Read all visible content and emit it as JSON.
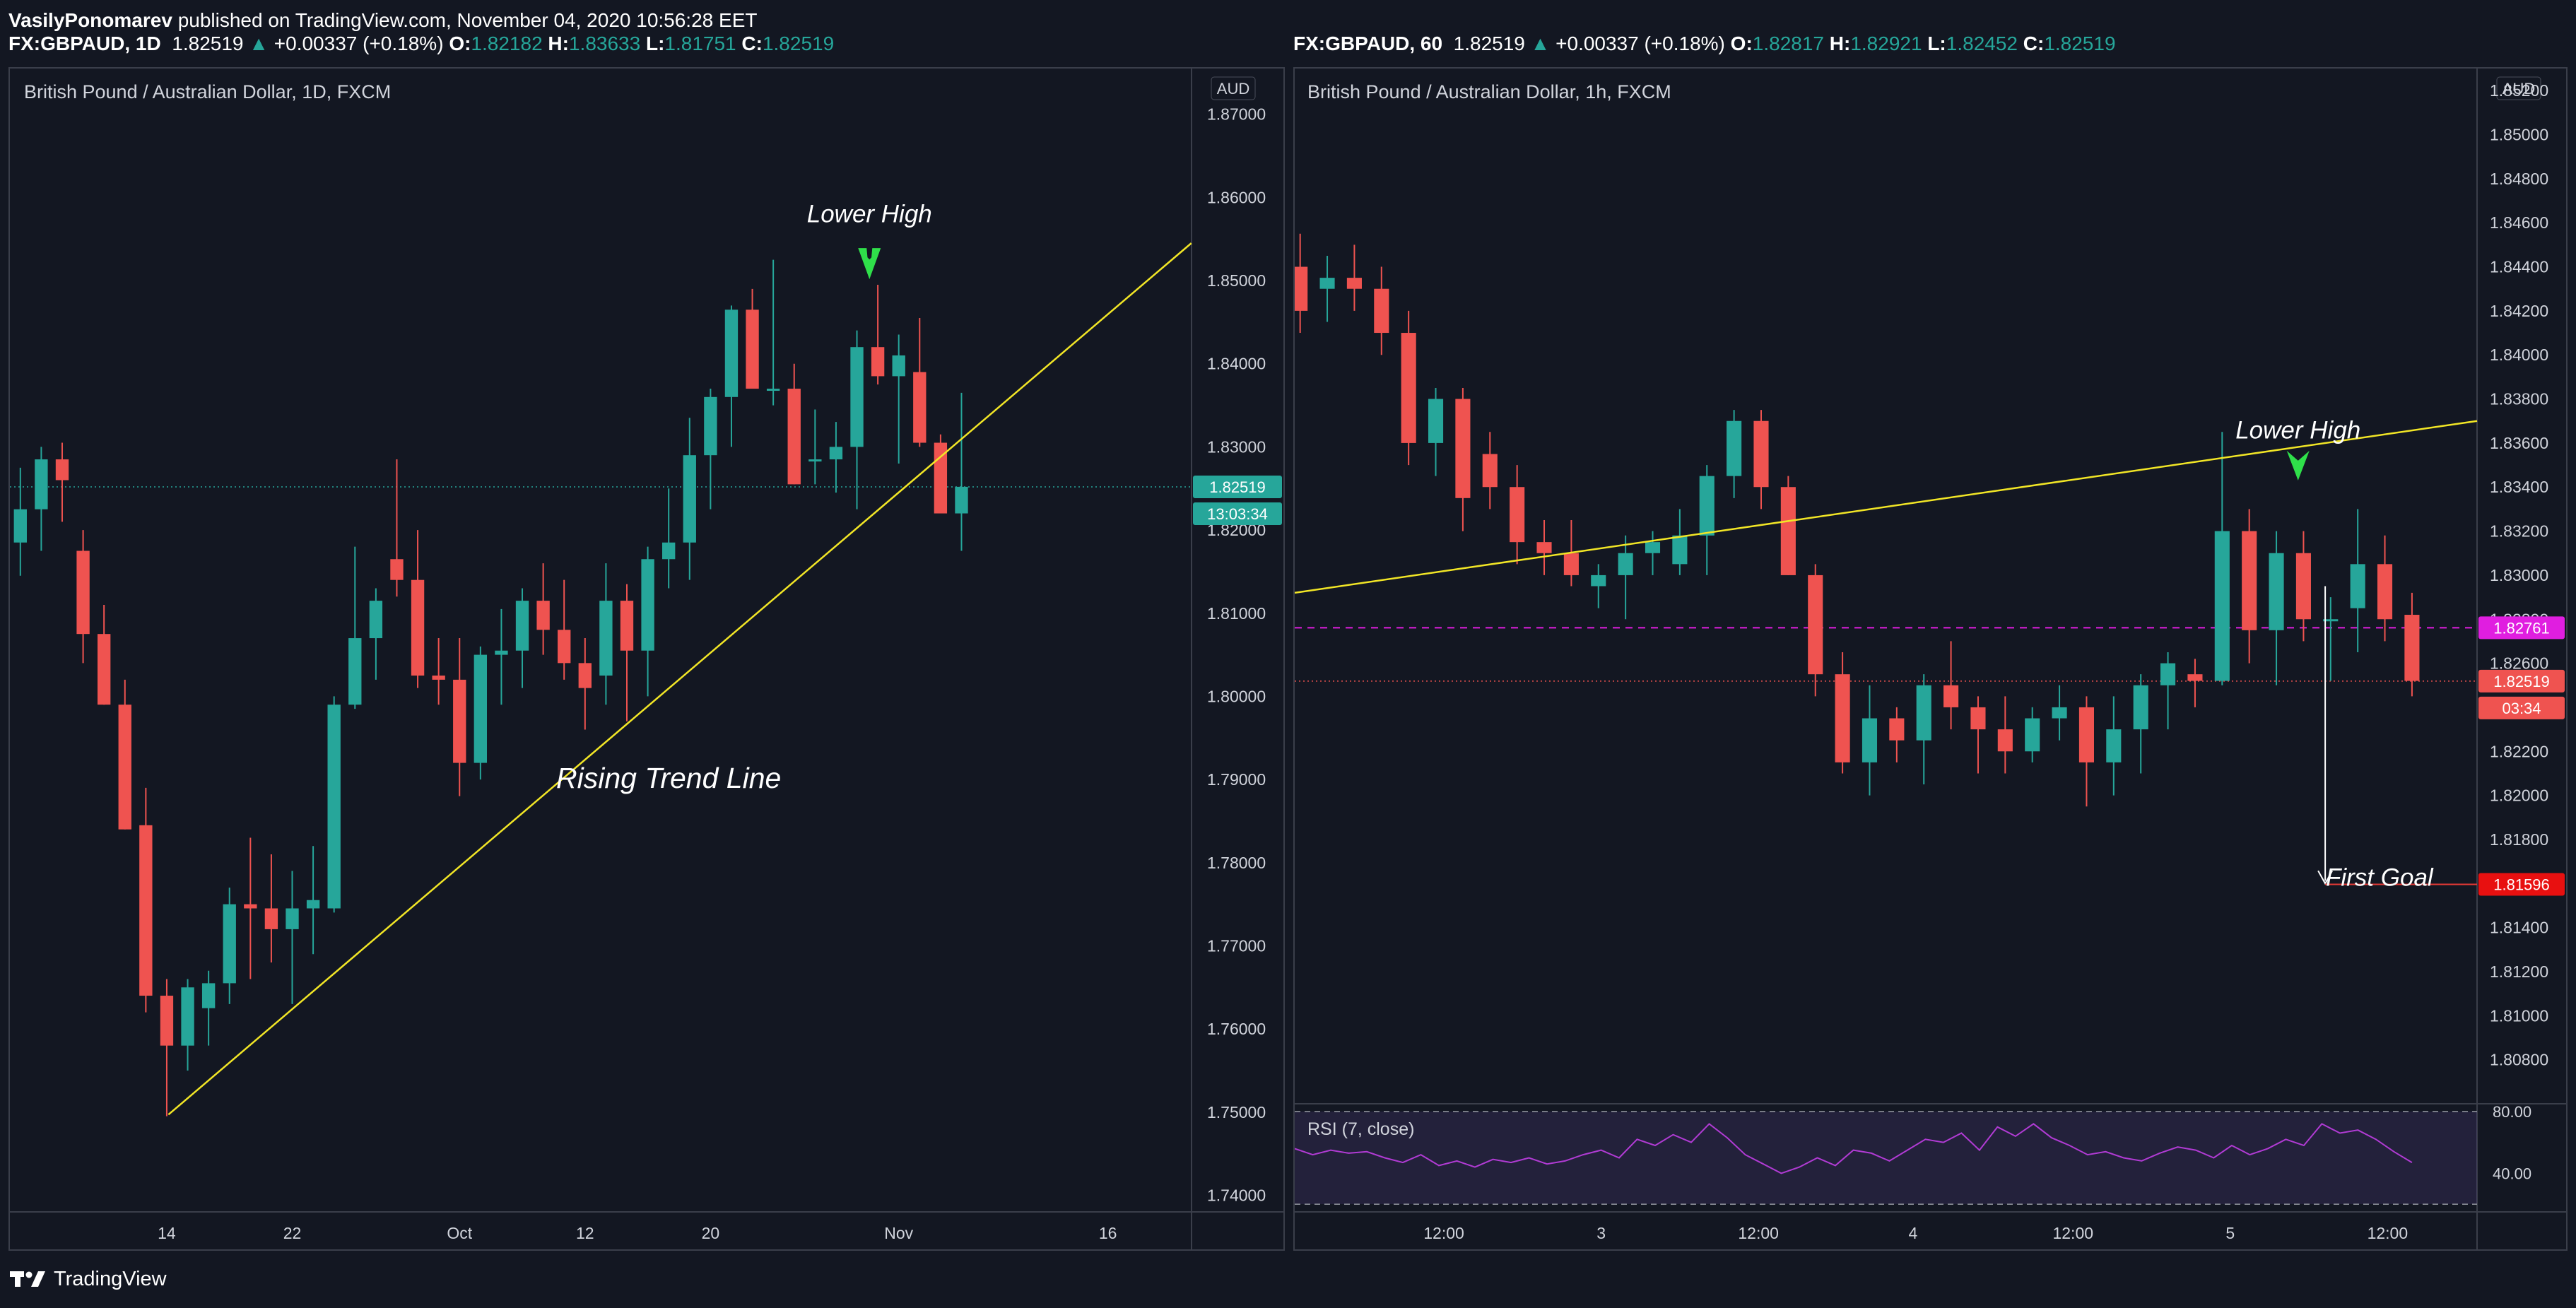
{
  "header": {
    "author": "VasilyPonomarev",
    "published_text": "published on TradingView.com, November 04, 2020 10:56:28 EET"
  },
  "left": {
    "symbol": "FX:GBPAUD, 1D",
    "price": "1.82519",
    "change": "+0.00337 (+0.18%)",
    "ohlc": {
      "O": "1.82182",
      "H": "1.83633",
      "L": "1.81751",
      "C": "1.82519"
    },
    "title": "British Pound / Australian Dollar, 1D, FXCM",
    "currency": "AUD",
    "price_tag": "1.82519",
    "countdown_tag": "13:03:34"
  },
  "right": {
    "symbol": "FX:GBPAUD, 60",
    "price": "1.82519",
    "change": "+0.00337 (+0.18%)",
    "ohlc": {
      "O": "1.82817",
      "H": "1.82921",
      "L": "1.82452",
      "C": "1.82519"
    },
    "title": "British Pound / Australian Dollar, 1h, FXCM",
    "currency": "AUD",
    "price_tag": "1.82519",
    "countdown_tag": "03:34",
    "magenta_tag": "1.82761",
    "goal_tag": "1.81596",
    "rsi_label": "RSI (7, close)"
  },
  "footer": {
    "brand": "TradingView"
  },
  "colors": {
    "up": "#26a69a",
    "down": "#ef5350",
    "trend": "#f2e626",
    "arrow": "#2fe04a",
    "background": "#131722",
    "magenta": "#e01ee0"
  },
  "chart_data": [
    {
      "type": "candlestick",
      "title": "British Pound / Australian Dollar, 1D, FXCM",
      "ylim": [
        1.738,
        1.8755
      ],
      "y_ticks": [
        1.87,
        1.86,
        1.85,
        1.84,
        1.83,
        1.82,
        1.81,
        1.8,
        1.79,
        1.78,
        1.77,
        1.76,
        1.75,
        1.74
      ],
      "x_ticks": [
        {
          "index": 7,
          "label": "14"
        },
        {
          "index": 13,
          "label": "22"
        },
        {
          "index": 21,
          "label": "Oct"
        },
        {
          "index": 27,
          "label": "12"
        },
        {
          "index": 33,
          "label": "20"
        },
        {
          "index": 42,
          "label": "Nov"
        },
        {
          "index": 52,
          "label": "16"
        }
      ],
      "x_range": [
        -0.5,
        56
      ],
      "last_price": 1.82519,
      "candles": [
        [
          1.8185,
          1.8275,
          1.8145,
          1.8225
        ],
        [
          1.8225,
          1.83,
          1.8175,
          1.8285
        ],
        [
          1.8285,
          1.8305,
          1.821,
          1.826
        ],
        [
          1.8175,
          1.82,
          1.804,
          1.8075
        ],
        [
          1.8075,
          1.811,
          1.799,
          1.799
        ],
        [
          1.799,
          1.802,
          1.784,
          1.784
        ],
        [
          1.7845,
          1.789,
          1.762,
          1.764
        ],
        [
          1.764,
          1.766,
          1.7495,
          1.758
        ],
        [
          1.758,
          1.766,
          1.755,
          1.765
        ],
        [
          1.7625,
          1.767,
          1.758,
          1.7655
        ],
        [
          1.7655,
          1.777,
          1.763,
          1.775
        ],
        [
          1.775,
          1.783,
          1.766,
          1.7745
        ],
        [
          1.7745,
          1.781,
          1.768,
          1.772
        ],
        [
          1.772,
          1.779,
          1.763,
          1.7745
        ],
        [
          1.7745,
          1.782,
          1.769,
          1.7755
        ],
        [
          1.7745,
          1.8,
          1.774,
          1.799
        ],
        [
          1.799,
          1.818,
          1.7985,
          1.807
        ],
        [
          1.807,
          1.813,
          1.802,
          1.8115
        ],
        [
          1.8165,
          1.8285,
          1.812,
          1.814
        ],
        [
          1.814,
          1.82,
          1.801,
          1.8025
        ],
        [
          1.8025,
          1.807,
          1.799,
          1.802
        ],
        [
          1.802,
          1.807,
          1.788,
          1.792
        ],
        [
          1.792,
          1.806,
          1.79,
          1.805
        ],
        [
          1.805,
          1.8105,
          1.799,
          1.8055
        ],
        [
          1.8055,
          1.813,
          1.801,
          1.8115
        ],
        [
          1.8115,
          1.816,
          1.805,
          1.808
        ],
        [
          1.808,
          1.814,
          1.802,
          1.804
        ],
        [
          1.804,
          1.807,
          1.796,
          1.801
        ],
        [
          1.8025,
          1.816,
          1.799,
          1.8115
        ],
        [
          1.8115,
          1.8135,
          1.797,
          1.8055
        ],
        [
          1.8055,
          1.818,
          1.8,
          1.8165
        ],
        [
          1.8165,
          1.825,
          1.813,
          1.8185
        ],
        [
          1.8185,
          1.8335,
          1.814,
          1.829
        ],
        [
          1.829,
          1.837,
          1.8225,
          1.836
        ],
        [
          1.836,
          1.847,
          1.83,
          1.8465
        ],
        [
          1.8465,
          1.849,
          1.837,
          1.837
        ],
        [
          1.837,
          1.8525,
          1.835,
          1.837
        ],
        [
          1.837,
          1.84,
          1.8255,
          1.8255
        ],
        [
          1.8285,
          1.8345,
          1.8255,
          1.8285
        ],
        [
          1.8285,
          1.833,
          1.8245,
          1.83
        ],
        [
          1.83,
          1.844,
          1.8225,
          1.842
        ],
        [
          1.842,
          1.8495,
          1.8375,
          1.8385
        ],
        [
          1.8385,
          1.8435,
          1.828,
          1.841
        ],
        [
          1.839,
          1.8455,
          1.83,
          1.8305
        ],
        [
          1.8305,
          1.8315,
          1.822,
          1.822
        ],
        [
          1.822,
          1.8365,
          1.8175,
          1.8252
        ]
      ],
      "annotations": [
        {
          "text": "Lower High",
          "index": 40.6,
          "price": 1.857
        },
        {
          "text": "Rising Trend Line",
          "index": 31,
          "price": 1.789
        }
      ],
      "trend_line": {
        "start": [
          7.08,
          1.7497
        ],
        "end": [
          55.99,
          1.8545
        ]
      },
      "arrow_marker": {
        "index": 40.6,
        "price": 1.85
      }
    },
    {
      "type": "candlestick",
      "title": "British Pound / Australian Dollar, 1h, FXCM",
      "ylim": [
        1.806,
        1.853
      ],
      "y_ticks": [
        1.852,
        1.85,
        1.848,
        1.846,
        1.844,
        1.842,
        1.84,
        1.838,
        1.836,
        1.834,
        1.832,
        1.83,
        1.828,
        1.826,
        1.824,
        1.822,
        1.82,
        1.818,
        1.816,
        1.814,
        1.812,
        1.81,
        1.808
      ],
      "y_tick_labels": [
        "1.85200",
        "1.85000",
        "1.84800",
        "1.84600",
        "1.84400",
        "1.84200",
        "1.84000",
        "1.83800",
        "1.83600",
        "1.83400",
        "1.83200",
        "1.83000",
        "1.82800",
        "1.82600",
        "1.82400",
        "1.82200",
        "1.82000",
        "1.81800",
        "1.81600",
        "1.81400",
        "1.81200",
        "1.81000",
        "1.80800"
      ],
      "x_ticks": [
        {
          "index": 5.3,
          "label": "12:00"
        },
        {
          "index": 11.1,
          "label": "3"
        },
        {
          "index": 16.9,
          "label": "12:00"
        },
        {
          "index": 22.6,
          "label": "4"
        },
        {
          "index": 28.5,
          "label": "12:00"
        },
        {
          "index": 34.3,
          "label": "5"
        },
        {
          "index": 40.1,
          "label": "12:00"
        }
      ],
      "x_range": [
        -0.2,
        43.4
      ],
      "last_price": 1.82519,
      "magenta_level": 1.82761,
      "goal_level": 1.81596,
      "candles": [
        [
          1.844,
          1.8455,
          1.841,
          1.842
        ],
        [
          1.843,
          1.8445,
          1.8415,
          1.8435
        ],
        [
          1.8435,
          1.845,
          1.842,
          1.843
        ],
        [
          1.843,
          1.844,
          1.84,
          1.841
        ],
        [
          1.841,
          1.842,
          1.835,
          1.836
        ],
        [
          1.836,
          1.8385,
          1.8345,
          1.838
        ],
        [
          1.838,
          1.8385,
          1.832,
          1.8335
        ],
        [
          1.8355,
          1.8365,
          1.833,
          1.834
        ],
        [
          1.834,
          1.835,
          1.8305,
          1.8315
        ],
        [
          1.8315,
          1.8325,
          1.83,
          1.831
        ],
        [
          1.831,
          1.8325,
          1.8295,
          1.83
        ],
        [
          1.8295,
          1.8305,
          1.8285,
          1.83
        ],
        [
          1.83,
          1.8318,
          1.828,
          1.831
        ],
        [
          1.831,
          1.832,
          1.83,
          1.8315
        ],
        [
          1.8305,
          1.833,
          1.83,
          1.8318
        ],
        [
          1.8318,
          1.835,
          1.83,
          1.8345
        ],
        [
          1.8345,
          1.8375,
          1.8335,
          1.837
        ],
        [
          1.837,
          1.8375,
          1.833,
          1.834
        ],
        [
          1.834,
          1.8345,
          1.83,
          1.83
        ],
        [
          1.83,
          1.8305,
          1.8245,
          1.8255
        ],
        [
          1.8255,
          1.8265,
          1.821,
          1.8215
        ],
        [
          1.8215,
          1.825,
          1.82,
          1.8235
        ],
        [
          1.8235,
          1.824,
          1.8215,
          1.8225
        ],
        [
          1.8225,
          1.8255,
          1.8205,
          1.825
        ],
        [
          1.825,
          1.827,
          1.823,
          1.824
        ],
        [
          1.824,
          1.8245,
          1.821,
          1.823
        ],
        [
          1.823,
          1.8245,
          1.821,
          1.822
        ],
        [
          1.822,
          1.824,
          1.8215,
          1.8235
        ],
        [
          1.8235,
          1.825,
          1.8225,
          1.824
        ],
        [
          1.824,
          1.8245,
          1.8195,
          1.8215
        ],
        [
          1.8215,
          1.8245,
          1.82,
          1.823
        ],
        [
          1.823,
          1.8255,
          1.821,
          1.825
        ],
        [
          1.825,
          1.8265,
          1.823,
          1.826
        ],
        [
          1.8255,
          1.8262,
          1.824,
          1.8252
        ],
        [
          1.8252,
          1.8365,
          1.825,
          1.832
        ],
        [
          1.832,
          1.833,
          1.826,
          1.8275
        ],
        [
          1.8275,
          1.832,
          1.825,
          1.831
        ],
        [
          1.831,
          1.832,
          1.827,
          1.828
        ],
        [
          1.828,
          1.829,
          1.8252,
          1.828
        ],
        [
          1.8285,
          1.833,
          1.8265,
          1.8305
        ],
        [
          1.8305,
          1.8318,
          1.827,
          1.828
        ],
        [
          1.8282,
          1.8292,
          1.8245,
          1.8252
        ]
      ],
      "annotations": [
        {
          "text": "Lower High",
          "index": 36.8,
          "price": 1.8362
        },
        {
          "text": "First Goal",
          "index": 39.8,
          "price": 1.8159
        }
      ],
      "trend_line": {
        "start": [
          -0.2,
          1.8292
        ],
        "end": [
          43.4,
          1.837
        ]
      },
      "arrow_marker": {
        "index": 36.8,
        "price": 1.8343
      },
      "target_arrow": {
        "index": 37.8,
        "from": 1.8295,
        "to": 1.816
      },
      "rsi": {
        "label": "RSI (7, close)",
        "upper": 80,
        "lower": 20,
        "tick_labels": [
          "80.00",
          "40.00"
        ],
        "ylim": [
          15,
          85
        ],
        "values": [
          56,
          52,
          55,
          53,
          54,
          50,
          47,
          52,
          45,
          48,
          44,
          49,
          47,
          50,
          46,
          48,
          52,
          55,
          50,
          62,
          58,
          65,
          60,
          72,
          63,
          52,
          46,
          40,
          44,
          50,
          45,
          55,
          53,
          48,
          55,
          62,
          60,
          66,
          55,
          70,
          64,
          72,
          63,
          58,
          52,
          54,
          50,
          48,
          53,
          57,
          55,
          50,
          58,
          52,
          56,
          62,
          58,
          72,
          66,
          68,
          62,
          54,
          47
        ]
      }
    }
  ]
}
